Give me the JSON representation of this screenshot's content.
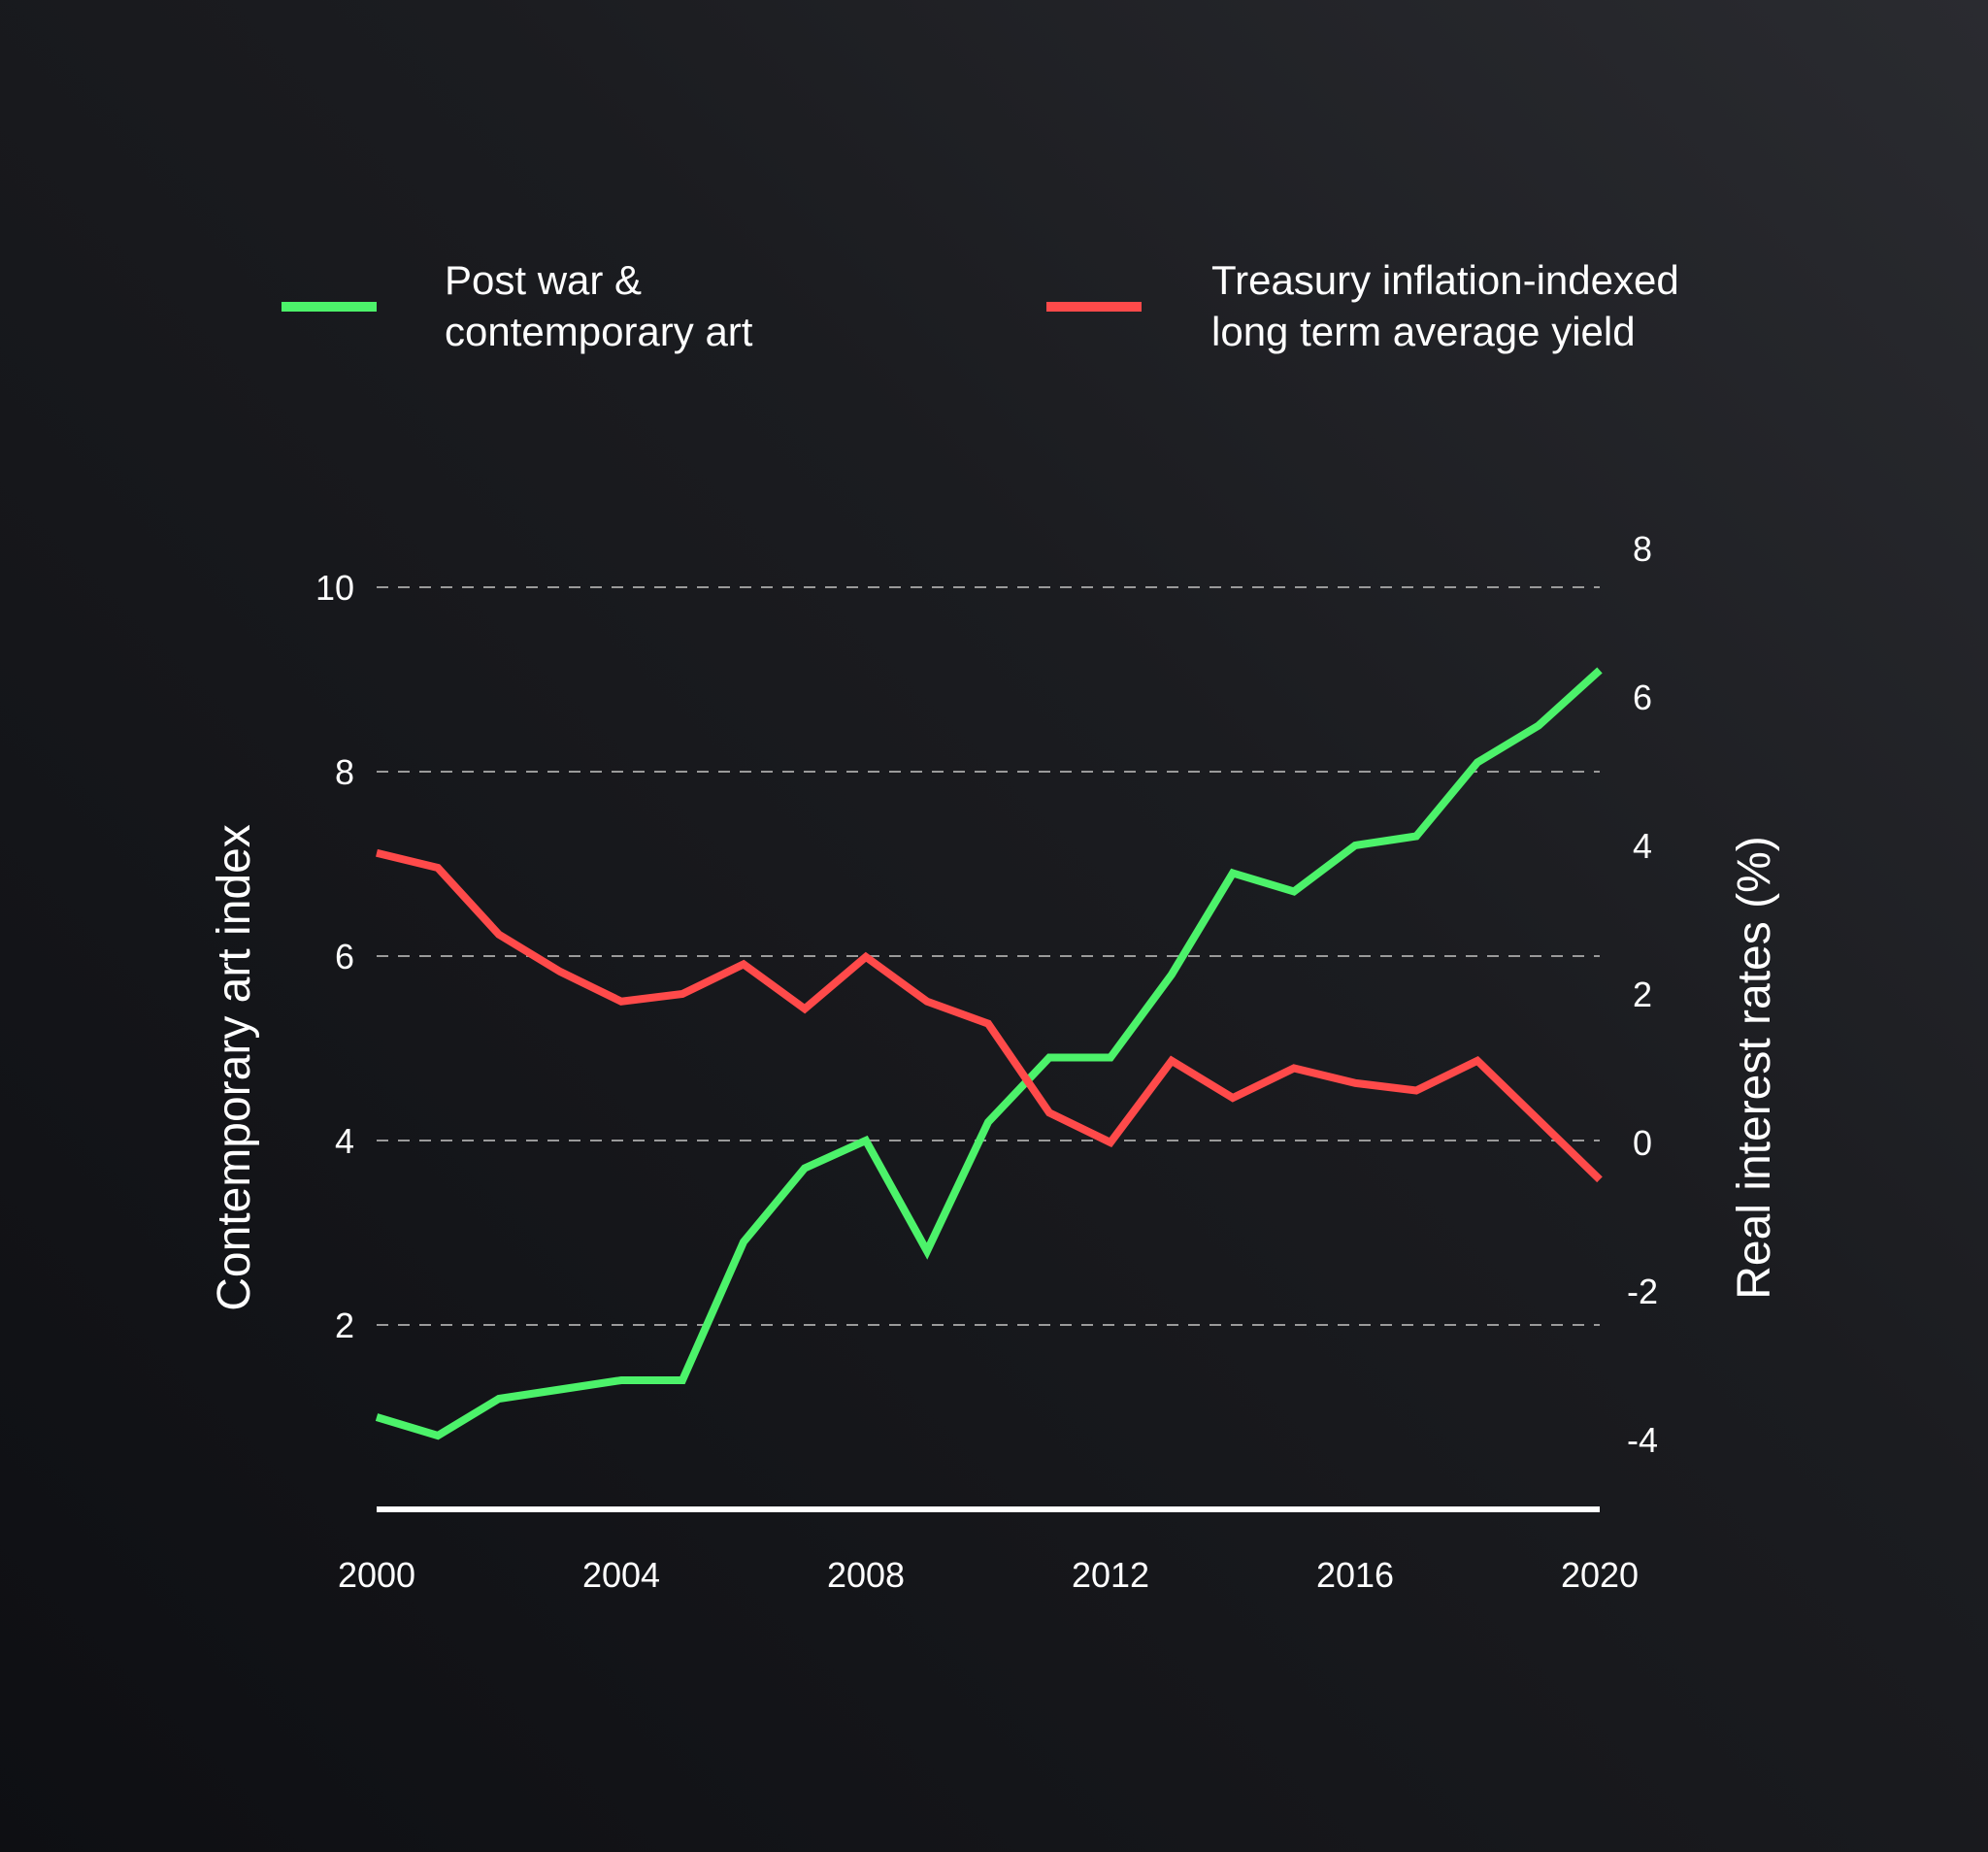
{
  "chart_data": {
    "type": "line",
    "legend_position": "top",
    "grid": true,
    "x": [
      2000,
      2001,
      2002,
      2003,
      2004,
      2005,
      2006,
      2007,
      2008,
      2009,
      2010,
      2011,
      2012,
      2013,
      2014,
      2015,
      2016,
      2017,
      2018,
      2019,
      2020
    ],
    "xticks": [
      "2000",
      "2004",
      "2008",
      "2012",
      "2016",
      "2020"
    ],
    "xlim": [
      2000,
      2020
    ],
    "y_left": {
      "label": "Contemporary art index",
      "ticks": [
        "2",
        "4",
        "6",
        "8",
        "10"
      ],
      "range": [
        0,
        10
      ]
    },
    "y_right": {
      "label": "Real interest rates (%)",
      "ticks": [
        "-4",
        "-2",
        "0",
        "2",
        "4",
        "6",
        "8"
      ],
      "range": [
        -5.2,
        8
      ]
    },
    "series": [
      {
        "name_lines": [
          "Post war &",
          "contemporary art"
        ],
        "color": "#4cf26a",
        "axis": "left",
        "values": [
          1.0,
          0.8,
          1.2,
          1.3,
          1.4,
          1.4,
          2.9,
          3.7,
          4.0,
          2.8,
          4.2,
          4.9,
          4.9,
          5.8,
          6.9,
          6.7,
          7.2,
          7.3,
          8.1,
          8.5,
          9.1
        ]
      },
      {
        "name_lines": [
          "Treasury inflation-indexed",
          "long term average yield"
        ],
        "color": "#ff4a4a",
        "axis": "right",
        "values": [
          3.9,
          3.7,
          2.8,
          2.3,
          1.9,
          2.0,
          2.4,
          1.8,
          2.5,
          1.9,
          1.6,
          0.4,
          0.0,
          1.1,
          0.6,
          1.0,
          0.8,
          0.7,
          1.1,
          0.3,
          -0.5
        ]
      }
    ]
  }
}
